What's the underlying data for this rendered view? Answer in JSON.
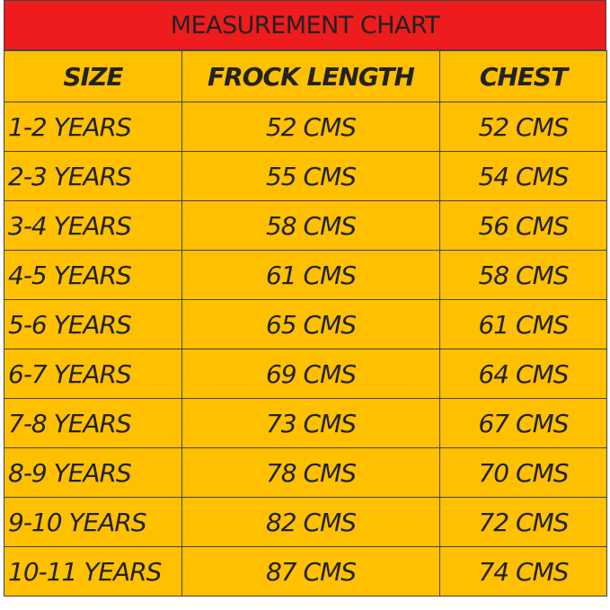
{
  "table": {
    "title": "MEASUREMENT CHART",
    "header": [
      "SIZE",
      "FROCK LENGTH",
      "CHEST"
    ],
    "rows": [
      [
        "1-2 YEARS",
        "52 CMS",
        "52 CMS"
      ],
      [
        "2-3 YEARS",
        "55 CMS",
        "54 CMS"
      ],
      [
        "3-4 YEARS",
        "58 CMS",
        "56 CMS"
      ],
      [
        "4-5 YEARS",
        "61 CMS",
        "58 CMS"
      ],
      [
        "5-6 YEARS",
        "65 CMS",
        "61 CMS"
      ],
      [
        "6-7 YEARS",
        "69 CMS",
        "64 CMS"
      ],
      [
        "7-8 YEARS",
        "73 CMS",
        "67 CMS"
      ],
      [
        "8-9 YEARS",
        "78 CMS",
        "70 CMS"
      ],
      [
        "9-10 YEARS",
        "82 CMS",
        "72 CMS"
      ],
      [
        "10-11 YEARS",
        "87 CMS",
        "74 CMS"
      ]
    ]
  }
}
